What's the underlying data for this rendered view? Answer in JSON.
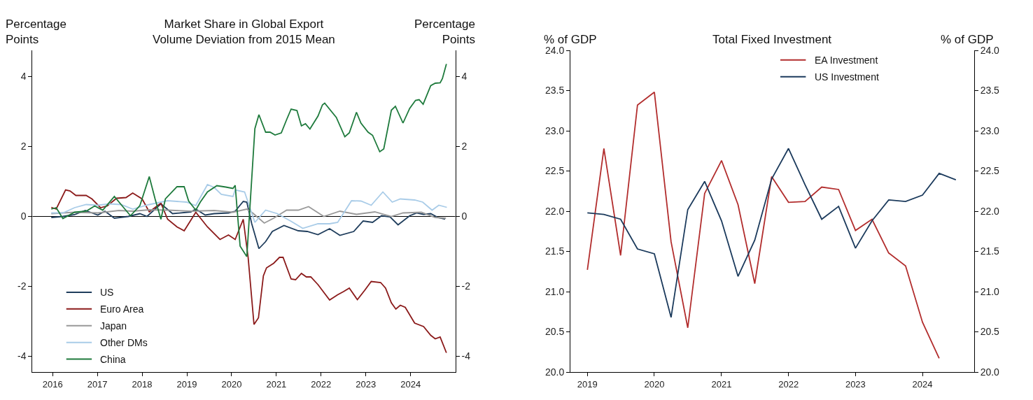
{
  "chart_data": [
    {
      "type": "line",
      "title": "Market Share in Global Export\nVolume Deviation from 2015 Mean",
      "ylabel": "Percentage\nPoints",
      "y2label": "Percentage\nPoints",
      "xlim": [
        2015.55,
        2025.0
      ],
      "xticks": [
        2016,
        2017,
        2018,
        2019,
        2020,
        2021,
        2022,
        2023,
        2024
      ],
      "ylim": [
        -4.45,
        4.75
      ],
      "yticks": [
        -4,
        -2,
        0,
        2,
        4
      ],
      "y2lim": [
        -4.45,
        4.75
      ],
      "y2ticks": [
        -4,
        -2,
        0,
        2,
        4
      ],
      "legend": "bottom left",
      "grid": false,
      "ref_lines": [
        {
          "axis": "y",
          "value": 0,
          "color": "#000000"
        }
      ],
      "series": [
        {
          "name": "US",
          "color": "#1f3d5c",
          "x": [
            2015.97,
            2016.23,
            2016.49,
            2016.73,
            2016.88,
            2017.01,
            2017.17,
            2017.38,
            2017.69,
            2017.95,
            2018.11,
            2018.42,
            2018.68,
            2019.09,
            2019.2,
            2019.41,
            2019.61,
            2019.93,
            2020.08,
            2020.26,
            2020.34,
            2020.45,
            2020.61,
            2020.76,
            2020.91,
            2021.17,
            2021.49,
            2021.69,
            2021.93,
            2022.19,
            2022.42,
            2022.73,
            2022.94,
            2023.15,
            2023.35,
            2023.54,
            2023.72,
            2023.98,
            2024.14,
            2024.29,
            2024.45,
            2024.61,
            2024.77
          ],
          "values": [
            -0.03,
            0,
            0.05,
            0.17,
            0.1,
            0.04,
            0.15,
            -0.05,
            0,
            0.08,
            0,
            0.36,
            0.08,
            0.13,
            0.21,
            0.04,
            0.08,
            0.1,
            0.15,
            0.43,
            0.41,
            -0.21,
            -0.92,
            -0.72,
            -0.43,
            -0.26,
            -0.41,
            -0.43,
            -0.52,
            -0.35,
            -0.54,
            -0.43,
            -0.13,
            -0.17,
            0.02,
            -0.01,
            -0.24,
            0.02,
            0.1,
            0.06,
            0.08,
            -0.03,
            -0.08
          ]
        },
        {
          "name": "Euro Area",
          "color": "#8b1a1a",
          "x": [
            2015.97,
            2016.08,
            2016.29,
            2016.39,
            2016.52,
            2016.75,
            2016.88,
            2017.07,
            2017.22,
            2017.43,
            2017.64,
            2017.79,
            2018.0,
            2018.16,
            2018.42,
            2018.57,
            2018.78,
            2018.94,
            2019.2,
            2019.46,
            2019.74,
            2019.93,
            2020.08,
            2020.26,
            2020.37,
            2020.5,
            2020.6,
            2020.71,
            2020.78,
            2020.94,
            2021.07,
            2021.15,
            2021.33,
            2021.43,
            2021.56,
            2021.67,
            2021.77,
            2021.93,
            2022.19,
            2022.37,
            2022.5,
            2022.63,
            2022.81,
            2022.97,
            2023.12,
            2023.33,
            2023.44,
            2023.57,
            2023.67,
            2023.77,
            2023.88,
            2024.09,
            2024.29,
            2024.45,
            2024.55,
            2024.66,
            2024.8
          ],
          "values": [
            0.26,
            0.21,
            0.76,
            0.73,
            0.6,
            0.6,
            0.5,
            0.25,
            0.3,
            0.52,
            0.54,
            0.67,
            0.5,
            0.13,
            0.38,
            -0.08,
            -0.3,
            -0.41,
            0.12,
            -0.3,
            -0.66,
            -0.53,
            -0.66,
            -0.08,
            -1.18,
            -3.09,
            -2.9,
            -1.7,
            -1.47,
            -1.34,
            -1.17,
            -1.17,
            -1.79,
            -1.81,
            -1.63,
            -1.73,
            -1.73,
            -1.95,
            -2.39,
            -2.24,
            -2.15,
            -2.05,
            -2.38,
            -2.12,
            -1.86,
            -1.89,
            -2.05,
            -2.47,
            -2.65,
            -2.54,
            -2.6,
            -3.05,
            -3.15,
            -3.4,
            -3.5,
            -3.45,
            -3.9
          ]
        },
        {
          "name": "Japan",
          "color": "#999999",
          "x": [
            2015.97,
            2016.49,
            2017.01,
            2017.48,
            2017.79,
            2018.16,
            2018.57,
            2019.09,
            2019.61,
            2020.03,
            2020.34,
            2020.47,
            2020.73,
            2020.94,
            2021.23,
            2021.49,
            2021.72,
            2022.06,
            2022.42,
            2022.79,
            2023.2,
            2023.57,
            2023.83,
            2024.24,
            2024.55,
            2024.79
          ],
          "values": [
            0.08,
            0.12,
            0.1,
            0.17,
            0.15,
            0.19,
            0.18,
            0.15,
            0.17,
            0.12,
            0.21,
            0.1,
            -0.19,
            -0.05,
            0.18,
            0.18,
            0.28,
            0,
            0.15,
            0.06,
            0.13,
            0,
            0.1,
            0.12,
            -0.03,
            -0.05
          ]
        },
        {
          "name": "Other DMs",
          "color": "#a9cce8",
          "x": [
            2015.97,
            2016.23,
            2016.49,
            2016.75,
            2017.01,
            2017.27,
            2017.53,
            2017.79,
            2018.16,
            2018.57,
            2018.99,
            2019.2,
            2019.46,
            2019.61,
            2019.77,
            2020.03,
            2020.08,
            2020.29,
            2020.52,
            2020.76,
            2021.02,
            2021.33,
            2021.59,
            2021.93,
            2022.19,
            2022.37,
            2022.68,
            2022.89,
            2023.12,
            2023.38,
            2023.59,
            2023.77,
            2024.09,
            2024.27,
            2024.48,
            2024.63,
            2024.81
          ],
          "values": [
            0.1,
            0.1,
            0.25,
            0.34,
            0.32,
            0.36,
            0.34,
            0.21,
            0.34,
            0.45,
            0.41,
            0.31,
            0.91,
            0.83,
            0.63,
            0.57,
            0.76,
            0.7,
            -0.17,
            0.18,
            0.08,
            -0.14,
            -0.34,
            -0.21,
            -0.21,
            -0.17,
            0.45,
            0.44,
            0.32,
            0.7,
            0.41,
            0.5,
            0.47,
            0.41,
            0.18,
            0.32,
            0.26
          ]
        },
        {
          "name": "China",
          "color": "#1e7a3c",
          "x": [
            2015.97,
            2016.08,
            2016.23,
            2016.49,
            2016.75,
            2016.94,
            2017.12,
            2017.38,
            2017.53,
            2017.74,
            2017.95,
            2018.16,
            2018.29,
            2018.42,
            2018.52,
            2018.78,
            2018.94,
            2019.04,
            2019.2,
            2019.3,
            2019.46,
            2019.67,
            2019.87,
            2020.03,
            2020.08,
            2020.19,
            2020.34,
            2020.52,
            2020.61,
            2020.76,
            2020.86,
            2020.97,
            2021.11,
            2021.23,
            2021.33,
            2021.46,
            2021.56,
            2021.65,
            2021.75,
            2021.93,
            2022.03,
            2022.08,
            2022.34,
            2022.53,
            2022.63,
            2022.79,
            2022.89,
            2023.05,
            2023.15,
            2023.31,
            2023.4,
            2023.57,
            2023.66,
            2023.83,
            2023.98,
            2024.11,
            2024.19,
            2024.28,
            2024.45,
            2024.55,
            2024.66,
            2024.71,
            2024.8
          ],
          "values": [
            0.21,
            0.25,
            -0.06,
            0.12,
            0.15,
            0.3,
            0.18,
            0.57,
            0.34,
            0.02,
            0.31,
            1.14,
            0.5,
            -0.08,
            0.5,
            0.85,
            0.85,
            0.44,
            0.18,
            0.41,
            0.7,
            0.88,
            0.84,
            0.8,
            0.89,
            -0.85,
            -1.15,
            2.51,
            2.91,
            2.41,
            2.41,
            2.33,
            2.39,
            2.77,
            3.07,
            3.03,
            2.59,
            2.65,
            2.5,
            2.87,
            3.19,
            3.24,
            2.83,
            2.28,
            2.39,
            2.98,
            2.67,
            2.41,
            2.32,
            1.85,
            1.93,
            3.04,
            3.15,
            2.67,
            3.09,
            3.32,
            3.34,
            3.21,
            3.74,
            3.81,
            3.82,
            3.94,
            4.36
          ]
        }
      ]
    },
    {
      "type": "line",
      "title": "Total Fixed Investment",
      "ylabel": "% of GDP",
      "y2label": "% of GDP",
      "x": [
        "2019-01",
        "2019-04",
        "2019-07",
        "2019-10",
        "2020-01",
        "2020-04",
        "2020-07",
        "2020-10",
        "2021-01",
        "2021-04",
        "2021-07",
        "2021-10",
        "2022-01",
        "2022-04",
        "2022-07",
        "2022-10",
        "2023-01",
        "2023-04",
        "2023-07",
        "2023-10",
        "2024-01",
        "2024-04",
        "2024-07"
      ],
      "xlim": [
        "2018-10-01",
        "2024-10-08"
      ],
      "xticks": [
        "2019",
        "2020",
        "2021",
        "2022",
        "2023",
        "2024"
      ],
      "ylim": [
        20,
        24
      ],
      "yticks": [
        {
          "value": 20,
          "label": "20.0"
        },
        {
          "value": 20.5,
          "label": "20.5"
        },
        {
          "value": 21,
          "label": "21.0"
        },
        {
          "value": 21.5,
          "label": "21.5"
        },
        {
          "value": 22,
          "label": "22.0"
        },
        {
          "value": 22.5,
          "label": "22.5"
        },
        {
          "value": 23,
          "label": "23.0"
        },
        {
          "value": 23.5,
          "label": "23.5"
        },
        {
          "value": 24,
          "label": "24.0"
        }
      ],
      "y2lim": [
        20,
        24
      ],
      "y2ticks": [
        {
          "value": 20,
          "label": "20.0"
        },
        {
          "value": 20.5,
          "label": "20.5"
        },
        {
          "value": 21,
          "label": "21.0"
        },
        {
          "value": 21.5,
          "label": "21.5"
        },
        {
          "value": 22,
          "label": "22.0"
        },
        {
          "value": 22.5,
          "label": "22.5"
        },
        {
          "value": 23,
          "label": "23.0"
        },
        {
          "value": 23.5,
          "label": "23.5"
        },
        {
          "value": 24,
          "label": "24.0"
        }
      ],
      "legend": "top right",
      "grid": false,
      "series": [
        {
          "name": "EA Investment",
          "color": "#b22d2d",
          "values": [
            21.27,
            22.78,
            21.45,
            23.32,
            23.48,
            21.62,
            20.55,
            22.22,
            22.63,
            22.08,
            21.1,
            22.43,
            22.11,
            22.12,
            22.3,
            22.27,
            21.76,
            21.9,
            21.48,
            21.32,
            20.62,
            20.17,
            null
          ]
        },
        {
          "name": "US Investment",
          "color": "#1b3a5c",
          "values": [
            21.98,
            21.96,
            21.9,
            21.53,
            21.47,
            20.68,
            22.02,
            22.37,
            21.88,
            21.19,
            21.64,
            22.4,
            22.78,
            22.33,
            21.9,
            22.06,
            21.54,
            21.88,
            22.14,
            22.12,
            22.2,
            22.47,
            22.39
          ]
        }
      ]
    }
  ]
}
